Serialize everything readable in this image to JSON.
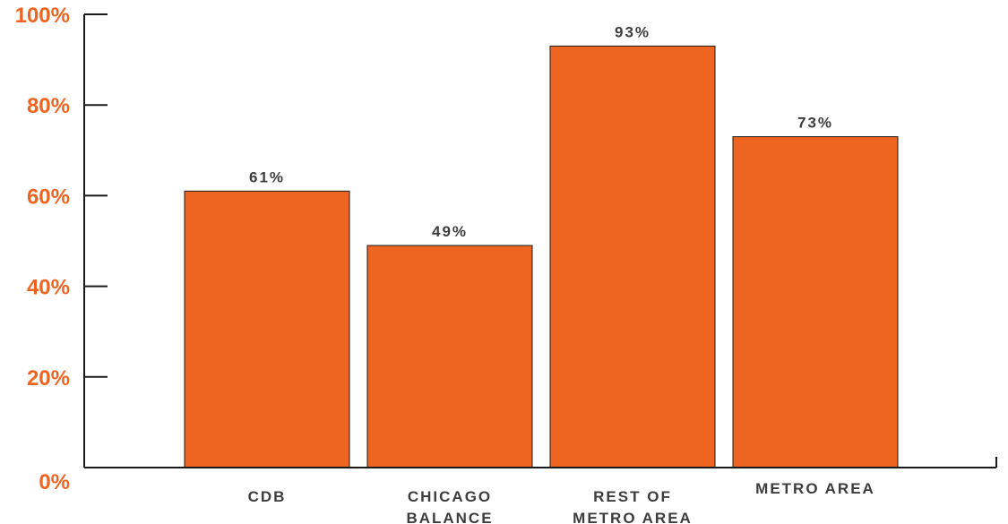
{
  "colors": {
    "bar": "#ee6522",
    "tick_label": "#ee6522",
    "text": "#3d3d3d",
    "axis": "#1a1a1a"
  },
  "chart_data": {
    "type": "bar",
    "title": "",
    "xlabel": "",
    "ylabel": "",
    "ylim": [
      0,
      100
    ],
    "yticks": [
      0,
      20,
      40,
      60,
      80,
      100
    ],
    "ytick_labels": [
      "0%",
      "20%",
      "40%",
      "60%",
      "80%",
      "100%"
    ],
    "grid": false,
    "categories": [
      [
        "CDB"
      ],
      [
        "CHICAGO",
        "BALANCE"
      ],
      [
        "REST OF",
        "METRO AREA"
      ],
      [
        "METRO AREA"
      ]
    ],
    "values": [
      61,
      49,
      93,
      73
    ],
    "data_labels": [
      "61%",
      "49%",
      "93%",
      "73%"
    ]
  }
}
